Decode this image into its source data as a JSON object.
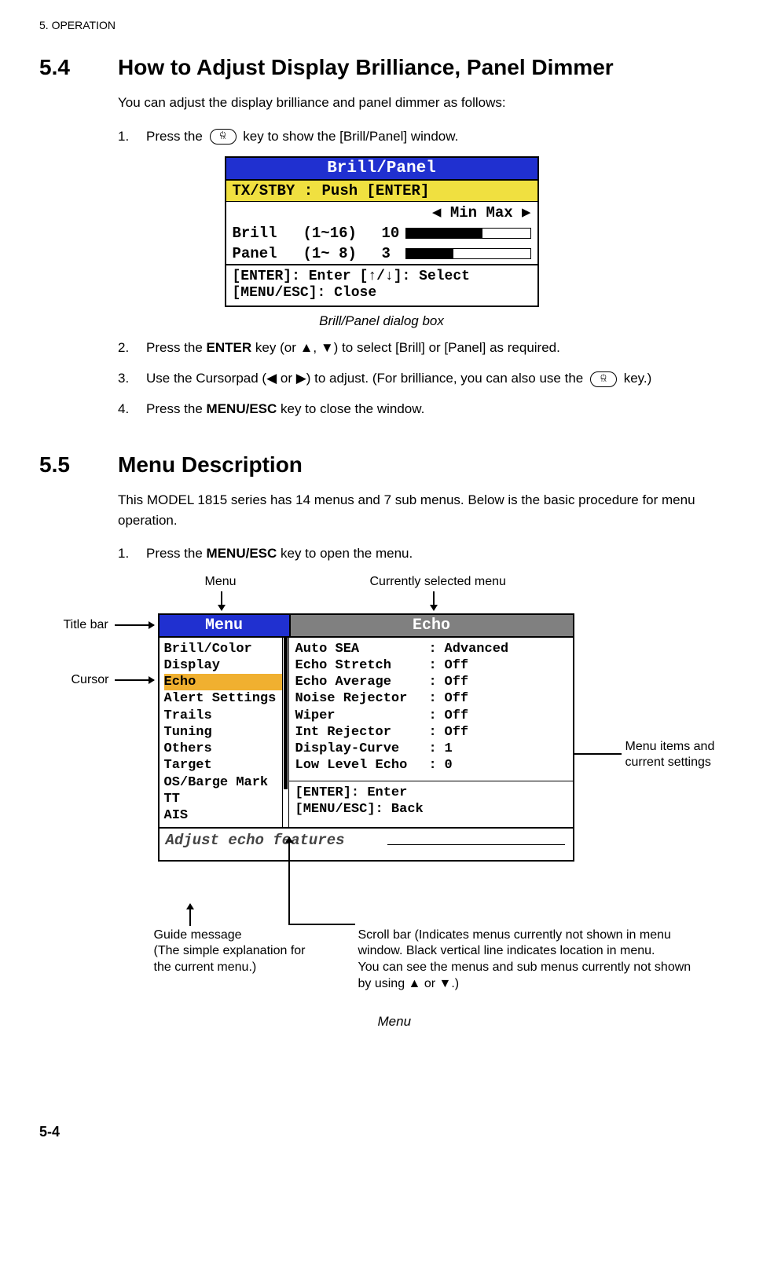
{
  "pageHeader": "5.  OPERATION",
  "section54": {
    "num": "5.4",
    "title": "How to Adjust Display Brilliance, Panel Dimmer",
    "intro": "You can adjust the display brilliance and panel dimmer as follows:",
    "step1_pre": "Press the ",
    "step1_post": " key to show the [Brill/Panel] window.",
    "dialog": {
      "title": "Brill/Panel",
      "hl": "TX/STBY       : Push [ENTER]",
      "minmax": "◀ Min   Max ▶",
      "row1": {
        "label": "Brill",
        "range": "(1~16)",
        "val": "10",
        "fillPct": 62
      },
      "row2": {
        "label": "Panel",
        "range": "(1~ 8)",
        "val": " 3",
        "fillPct": 38
      },
      "footer1": "[ENTER]: Enter [↑/↓]: Select",
      "footer2": "[MENU/ESC]: Close",
      "caption": "Brill/Panel dialog box"
    },
    "step2_a": "Press the ",
    "step2_b": "ENTER",
    "step2_c": " key (or ▲, ▼) to select [Brill] or [Panel] as required.",
    "step3_a": "Use the Cursorpad (◀ or ▶) to adjust. (For brilliance, you can also use the ",
    "step3_b": " key.)",
    "step4_a": "Press the ",
    "step4_b": "MENU/ESC",
    "step4_c": " key to close the window."
  },
  "section55": {
    "num": "5.5",
    "title": "Menu Description",
    "intro": "This MODEL 1815 series has 14 menus and 7 sub menus. Below is the basic procedure for menu operation.",
    "step1_a": "Press the ",
    "step1_b": "MENU/ESC",
    "step1_c": " key to open the menu.",
    "menu": {
      "titleLeft": "Menu",
      "titleRight": "Echo",
      "leftItems": [
        "Brill/Color",
        "Display",
        "Echo",
        "Alert Settings",
        "Trails",
        "Tuning",
        "Others",
        "Target",
        "OS/Barge Mark",
        "TT",
        "AIS"
      ],
      "selectedIndex": 2,
      "rightItems": [
        {
          "k": "Auto SEA",
          "v": "Advanced"
        },
        {
          "k": "Echo Stretch",
          "v": "Off"
        },
        {
          "k": "Echo Average",
          "v": "Off"
        },
        {
          "k": "Noise Rejector",
          "v": "Off"
        },
        {
          "k": "Wiper",
          "v": "Off"
        },
        {
          "k": "Int Rejector",
          "v": "Off"
        },
        {
          "k": "Display-Curve",
          "v": "1"
        },
        {
          "k": "Low Level Echo",
          "v": " 0"
        }
      ],
      "rightFooter1": "[ENTER]: Enter",
      "rightFooter2": "[MENU/ESC]: Back",
      "guide": "Adjust echo features",
      "caption": "Menu"
    },
    "annotations": {
      "menuTop": "Menu",
      "currentlySelected": "Currently selected menu",
      "titleBar": "Title bar",
      "cursor": "Cursor",
      "menuItems": "Menu items and current settings",
      "guideMsg": "Guide message\n(The simple explanation for\n the current menu.)",
      "scrollBar": "Scroll bar (Indicates menus currently not shown in menu window. Black vertical line indicates location in menu.\nYou can see the menus and sub menus currently not shown by using ▲ or ▼.)"
    }
  },
  "pageNum": "5-4"
}
